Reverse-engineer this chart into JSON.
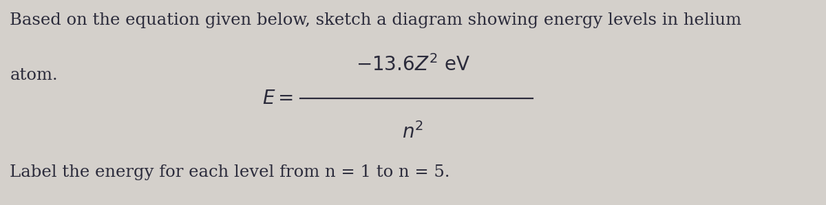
{
  "background_color": "#d4d0cb",
  "line1": "Based on the equation given below, sketch a diagram showing energy levels in helium",
  "line2": "atom.",
  "equation_lhs": "$E =$",
  "equation_numerator": "$-13.6Z^2\\ \\mathrm{eV}$",
  "equation_denominator": "$n^2$",
  "line3": "Label the energy for each level from n = 1 to n = 5.",
  "text_color": "#2b2b3b",
  "font_size_main": 17.5,
  "font_size_eq": 20
}
